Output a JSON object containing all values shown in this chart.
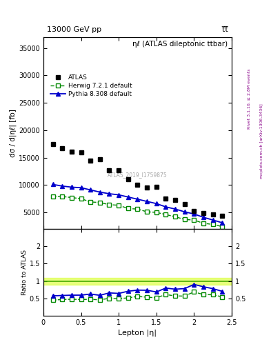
{
  "title_top": "13000 GeV pp",
  "title_top_right": "t̅t̅",
  "plot_title": "ηℓ (ATLAS dileptonic ttbar)",
  "watermark": "ATLAS_2019_I1759875",
  "ylabel_main": "dσ / d|ηℓ| [fb]",
  "ylabel_ratio": "Ratio to ATLAS",
  "xlabel": "Lepton |η|",
  "right_label_top": "Rivet 3.1.10, ≥ 2.8M events",
  "right_label_bot": "mcplots.cern.ch [arXiv:1306.3436]",
  "atlas_x": [
    0.125,
    0.25,
    0.375,
    0.5,
    0.625,
    0.75,
    0.875,
    1.0,
    1.125,
    1.25,
    1.375,
    1.5,
    1.625,
    1.75,
    1.875,
    2.0,
    2.125,
    2.25,
    2.375
  ],
  "atlas_y": [
    17500,
    16700,
    16100,
    15900,
    14500,
    14700,
    12700,
    12700,
    11000,
    10000,
    9500,
    9600,
    7500,
    7300,
    6500,
    5200,
    4900,
    4600,
    4400
  ],
  "herwig_x": [
    0.125,
    0.25,
    0.375,
    0.5,
    0.625,
    0.75,
    0.875,
    1.0,
    1.125,
    1.25,
    1.375,
    1.5,
    1.625,
    1.75,
    1.875,
    2.0,
    2.125,
    2.25,
    2.375
  ],
  "herwig_y": [
    7900,
    7900,
    7700,
    7500,
    6900,
    6800,
    6400,
    6300,
    5700,
    5600,
    5100,
    5000,
    4600,
    4200,
    3700,
    3600,
    3000,
    2800,
    2400
  ],
  "pythia_x": [
    0.125,
    0.25,
    0.375,
    0.5,
    0.625,
    0.75,
    0.875,
    1.0,
    1.125,
    1.25,
    1.375,
    1.5,
    1.625,
    1.75,
    1.875,
    2.0,
    2.125,
    2.25,
    2.375
  ],
  "pythia_y": [
    10100,
    9800,
    9600,
    9500,
    9100,
    8700,
    8400,
    8200,
    7800,
    7400,
    7000,
    6600,
    6000,
    5600,
    5100,
    4700,
    4100,
    3600,
    3100
  ],
  "herwig_ratio": [
    0.452,
    0.473,
    0.478,
    0.472,
    0.476,
    0.463,
    0.504,
    0.496,
    0.518,
    0.56,
    0.537,
    0.521,
    0.613,
    0.575,
    0.569,
    0.692,
    0.612,
    0.609,
    0.545
  ],
  "pythia_ratio": [
    0.577,
    0.587,
    0.596,
    0.597,
    0.628,
    0.592,
    0.661,
    0.646,
    0.709,
    0.74,
    0.737,
    0.688,
    0.8,
    0.767,
    0.785,
    0.904,
    0.837,
    0.783,
    0.705
  ],
  "ylim_main": [
    2000,
    37000
  ],
  "ylim_ratio": [
    0.0,
    2.5
  ],
  "xlim": [
    0.0,
    2.5
  ],
  "yticks_main": [
    5000,
    10000,
    15000,
    20000,
    25000,
    30000,
    35000
  ],
  "ytick_labels_main": [
    "5000",
    "10000",
    "15000",
    "20000",
    "25000",
    "30000",
    "35000"
  ],
  "yticks_ratio": [
    0.5,
    1.0,
    1.5,
    2.0
  ],
  "ytick_labels_ratio": [
    "0.5",
    "1",
    "1.5",
    "2"
  ],
  "xticks": [
    0.0,
    0.5,
    1.0,
    1.5,
    2.0,
    2.5
  ],
  "atlas_color": "#000000",
  "herwig_color": "#008800",
  "pythia_color": "#0000cc",
  "ratio_band_color": "#ddff44",
  "ratio_band_alpha": 0.7,
  "ratio_band_ymin": 0.9,
  "ratio_band_ymax": 1.1,
  "ratio_line_color": "#44aa00",
  "ratio_line_y": 1.0,
  "bg_color": "#ffffff"
}
